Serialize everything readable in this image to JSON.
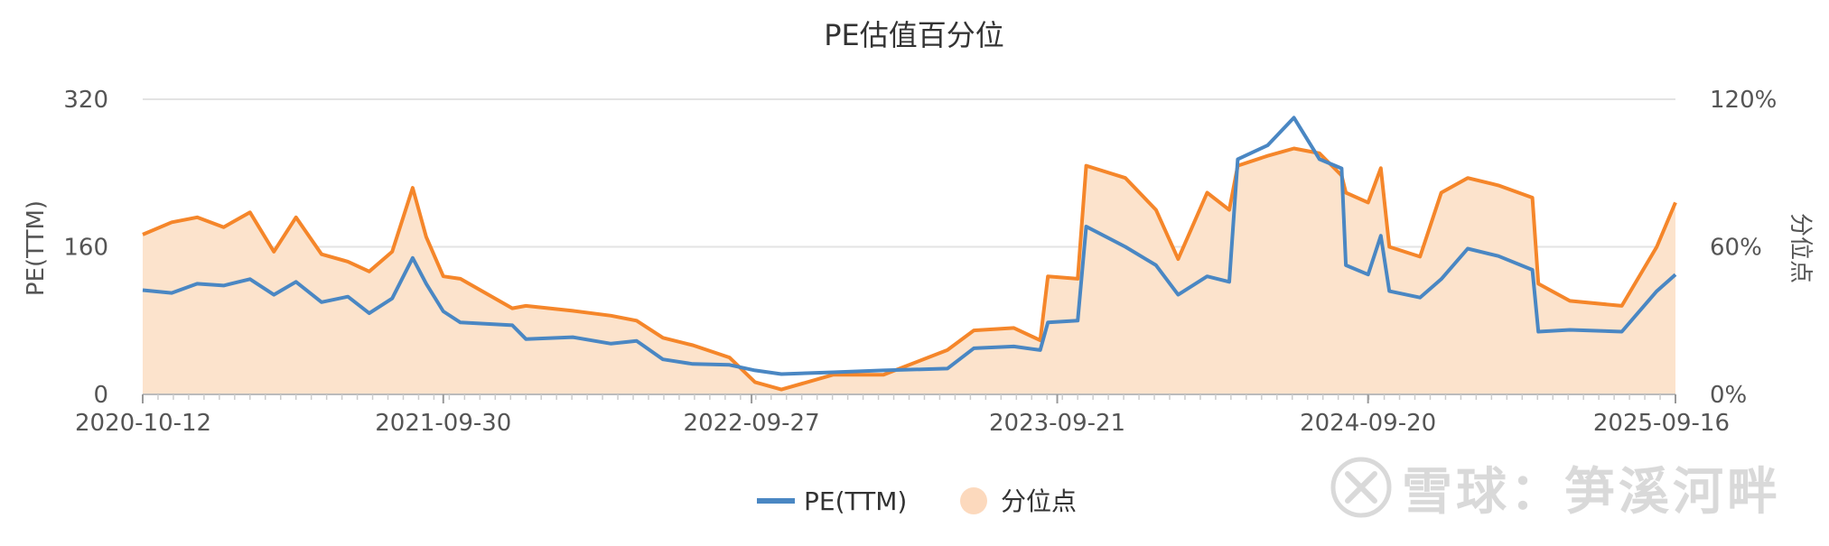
{
  "chart_data": {
    "type": "line",
    "title": "PE估值百分位",
    "ylabel_left": "PE(TTM)",
    "ylabel_right": "分位点",
    "left_axis": {
      "min": 0,
      "max": 320,
      "ticks": [
        "0",
        "160",
        "320"
      ]
    },
    "right_axis": {
      "min": 0,
      "max": 120,
      "ticks": [
        "0%",
        "60%",
        "120%"
      ]
    },
    "x_tick_labels": [
      "2020-10-12",
      "2021-09-30",
      "2022-09-27",
      "2023-09-21",
      "2024-09-20",
      "2025-09-16"
    ],
    "x_range": [
      "2020-10-12",
      "2025-09-16"
    ],
    "grid": true,
    "legend_position": "bottom-center",
    "series": [
      {
        "name": "PE(TTM)",
        "axis": "left",
        "style": "line",
        "color": "#4a87c3",
        "points": [
          [
            "2020-10-12",
            113
          ],
          [
            "2020-11-15",
            110
          ],
          [
            "2020-12-15",
            120
          ],
          [
            "2021-01-15",
            118
          ],
          [
            "2021-02-15",
            125
          ],
          [
            "2021-03-15",
            108
          ],
          [
            "2021-04-10",
            122
          ],
          [
            "2021-05-10",
            100
          ],
          [
            "2021-06-10",
            106
          ],
          [
            "2021-07-05",
            88
          ],
          [
            "2021-08-01",
            104
          ],
          [
            "2021-08-25",
            148
          ],
          [
            "2021-09-10",
            120
          ],
          [
            "2021-09-30",
            90
          ],
          [
            "2021-10-20",
            78
          ],
          [
            "2021-12-20",
            75
          ],
          [
            "2022-01-05",
            60
          ],
          [
            "2022-03-01",
            62
          ],
          [
            "2022-04-15",
            55
          ],
          [
            "2022-05-15",
            58
          ],
          [
            "2022-06-15",
            38
          ],
          [
            "2022-07-20",
            33
          ],
          [
            "2022-09-01",
            32
          ],
          [
            "2022-10-01",
            26
          ],
          [
            "2022-11-01",
            22
          ],
          [
            "2023-01-01",
            24
          ],
          [
            "2023-03-01",
            26
          ],
          [
            "2023-05-15",
            28
          ],
          [
            "2023-06-15",
            50
          ],
          [
            "2023-08-01",
            52
          ],
          [
            "2023-09-01",
            48
          ],
          [
            "2023-09-10",
            78
          ],
          [
            "2023-10-15",
            80
          ],
          [
            "2023-10-25",
            182
          ],
          [
            "2023-12-10",
            160
          ],
          [
            "2024-01-15",
            140
          ],
          [
            "2024-02-10",
            108
          ],
          [
            "2024-03-15",
            128
          ],
          [
            "2024-04-10",
            122
          ],
          [
            "2024-04-20",
            255
          ],
          [
            "2024-05-25",
            270
          ],
          [
            "2024-06-25",
            300
          ],
          [
            "2024-07-25",
            255
          ],
          [
            "2024-08-20",
            245
          ],
          [
            "2024-08-25",
            140
          ],
          [
            "2024-09-20",
            130
          ],
          [
            "2024-10-05",
            172
          ],
          [
            "2024-10-15",
            112
          ],
          [
            "2024-11-20",
            105
          ],
          [
            "2024-12-15",
            125
          ],
          [
            "2025-01-15",
            158
          ],
          [
            "2025-02-20",
            150
          ],
          [
            "2025-04-01",
            135
          ],
          [
            "2025-04-08",
            68
          ],
          [
            "2025-05-15",
            70
          ],
          [
            "2025-07-15",
            68
          ],
          [
            "2025-08-25",
            112
          ],
          [
            "2025-09-16",
            130
          ]
        ]
      },
      {
        "name": "分位点",
        "axis": "right",
        "style": "area",
        "color": "#f5862a",
        "fill": "#fce3cc",
        "points": [
          [
            "2020-10-12",
            65
          ],
          [
            "2020-11-15",
            70
          ],
          [
            "2020-12-15",
            72
          ],
          [
            "2021-01-15",
            68
          ],
          [
            "2021-02-15",
            74
          ],
          [
            "2021-03-15",
            58
          ],
          [
            "2021-04-10",
            72
          ],
          [
            "2021-05-10",
            57
          ],
          [
            "2021-06-10",
            54
          ],
          [
            "2021-07-05",
            50
          ],
          [
            "2021-08-01",
            58
          ],
          [
            "2021-08-25",
            84
          ],
          [
            "2021-09-10",
            64
          ],
          [
            "2021-09-30",
            48
          ],
          [
            "2021-10-20",
            47
          ],
          [
            "2021-12-20",
            35
          ],
          [
            "2022-01-05",
            36
          ],
          [
            "2022-03-01",
            34
          ],
          [
            "2022-04-15",
            32
          ],
          [
            "2022-05-15",
            30
          ],
          [
            "2022-06-15",
            23
          ],
          [
            "2022-07-20",
            20
          ],
          [
            "2022-09-01",
            15
          ],
          [
            "2022-10-01",
            5
          ],
          [
            "2022-11-01",
            2
          ],
          [
            "2023-01-01",
            8
          ],
          [
            "2023-03-01",
            8
          ],
          [
            "2023-05-15",
            18
          ],
          [
            "2023-06-15",
            26
          ],
          [
            "2023-08-01",
            27
          ],
          [
            "2023-09-01",
            22
          ],
          [
            "2023-09-10",
            48
          ],
          [
            "2023-10-15",
            47
          ],
          [
            "2023-10-25",
            93
          ],
          [
            "2023-12-10",
            88
          ],
          [
            "2024-01-15",
            75
          ],
          [
            "2024-02-10",
            55
          ],
          [
            "2024-03-15",
            82
          ],
          [
            "2024-04-10",
            75
          ],
          [
            "2024-04-20",
            93
          ],
          [
            "2024-05-25",
            97
          ],
          [
            "2024-06-25",
            100
          ],
          [
            "2024-07-25",
            98
          ],
          [
            "2024-08-20",
            89
          ],
          [
            "2024-08-25",
            82
          ],
          [
            "2024-09-20",
            78
          ],
          [
            "2024-10-05",
            92
          ],
          [
            "2024-10-15",
            60
          ],
          [
            "2024-11-20",
            56
          ],
          [
            "2024-12-15",
            82
          ],
          [
            "2025-01-15",
            88
          ],
          [
            "2025-02-20",
            85
          ],
          [
            "2025-04-01",
            80
          ],
          [
            "2025-04-08",
            45
          ],
          [
            "2025-05-15",
            38
          ],
          [
            "2025-07-15",
            36
          ],
          [
            "2025-08-25",
            60
          ],
          [
            "2025-09-16",
            78
          ]
        ]
      }
    ]
  },
  "watermark": {
    "text": "雪球：笋溪河畔"
  }
}
